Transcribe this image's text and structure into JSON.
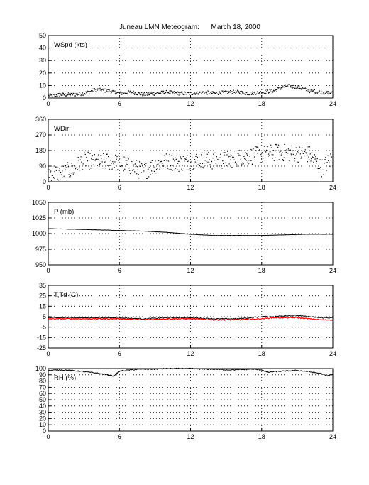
{
  "title": "Juneau LMN Meteogram:      March 18, 2000",
  "chart_data": [
    {
      "type": "scatter",
      "label": "WSpd (kts)",
      "xlim": [
        0,
        24
      ],
      "xticks": [
        0,
        6,
        12,
        18,
        24
      ],
      "ylim": [
        0,
        50
      ],
      "yticks": [
        0,
        10,
        20,
        30,
        40,
        50
      ],
      "grid": true,
      "series": [
        {
          "color": "#000000",
          "x": [
            0,
            1,
            2,
            3,
            4,
            5,
            6,
            7,
            8,
            9,
            10,
            11,
            12,
            13,
            14,
            15,
            16,
            17,
            18,
            19,
            20,
            21,
            22,
            23,
            24
          ],
          "y": [
            2,
            3,
            3,
            4,
            7,
            6,
            4,
            5,
            3,
            4,
            5,
            4,
            4,
            5,
            4,
            5,
            5,
            4,
            5,
            6,
            10,
            9,
            6,
            5,
            4
          ]
        }
      ]
    },
    {
      "type": "scatter",
      "label": "WDir",
      "xlim": [
        0,
        24
      ],
      "xticks": [
        0,
        6,
        12,
        18,
        24
      ],
      "ylim": [
        0,
        360
      ],
      "yticks": [
        0,
        90,
        180,
        270,
        360
      ],
      "grid": true,
      "series": [
        {
          "color": "#000000",
          "x": [
            0,
            1,
            2,
            3,
            4,
            5,
            6,
            7,
            8,
            9,
            10,
            11,
            12,
            13,
            14,
            15,
            16,
            17,
            18,
            19,
            20,
            21,
            22,
            23,
            24
          ],
          "y": [
            60,
            50,
            70,
            130,
            110,
            120,
            110,
            90,
            60,
            100,
            120,
            110,
            120,
            130,
            120,
            130,
            140,
            150,
            160,
            170,
            170,
            165,
            160,
            80,
            140
          ]
        }
      ]
    },
    {
      "type": "line",
      "label": "P (mb)",
      "xlim": [
        0,
        24
      ],
      "xticks": [
        0,
        6,
        12,
        18,
        24
      ],
      "ylim": [
        950,
        1050
      ],
      "yticks": [
        950,
        975,
        1000,
        1025,
        1050
      ],
      "grid": true,
      "series": [
        {
          "color": "#000000",
          "x": [
            0,
            2,
            4,
            6,
            8,
            10,
            12,
            13,
            14,
            16,
            18,
            20,
            22,
            24
          ],
          "y": [
            1008,
            1007,
            1006,
            1005,
            1004,
            1002,
            999,
            998,
            997,
            997,
            997,
            998,
            999,
            999
          ]
        }
      ]
    },
    {
      "type": "line",
      "label": "T,Td (C)",
      "xlim": [
        0,
        24
      ],
      "xticks": [
        0,
        6,
        12,
        18,
        24
      ],
      "ylim": [
        -25,
        35
      ],
      "yticks": [
        -25,
        -15,
        -5,
        5,
        15,
        25,
        35
      ],
      "grid": true,
      "series": [
        {
          "color": "#000000",
          "x": [
            0,
            2,
            4,
            6,
            8,
            10,
            12,
            14,
            16,
            18,
            19,
            20,
            21,
            22,
            23,
            24
          ],
          "y": [
            4,
            4,
            4,
            4,
            3,
            4,
            4,
            3,
            3,
            5,
            5,
            6,
            6,
            5,
            4,
            4
          ]
        },
        {
          "color": "#ff0000",
          "x": [
            0,
            2,
            4,
            6,
            8,
            10,
            12,
            14,
            16,
            18,
            19,
            20,
            21,
            22,
            23,
            24
          ],
          "y": [
            3,
            3,
            3,
            3,
            2,
            3,
            3,
            2,
            2,
            3,
            4,
            4,
            4,
            3,
            2,
            2
          ]
        }
      ]
    },
    {
      "type": "line",
      "label": "RH (%)",
      "xlim": [
        0,
        24
      ],
      "xticks": [
        0,
        6,
        12,
        18,
        24
      ],
      "ylim": [
        0,
        100
      ],
      "yticks": [
        0,
        10,
        20,
        30,
        40,
        50,
        60,
        70,
        80,
        90,
        100
      ],
      "grid": true,
      "series": [
        {
          "color": "#000000",
          "x": [
            0,
            1,
            2,
            3,
            4,
            5,
            5.5,
            6,
            7,
            8,
            9,
            10,
            11,
            12,
            13,
            14,
            15,
            16,
            17,
            18,
            18.5,
            19,
            20,
            21,
            22,
            23,
            23.5,
            24
          ],
          "y": [
            97,
            98,
            97,
            95,
            93,
            90,
            88,
            96,
            98,
            99,
            99,
            100,
            100,
            100,
            99,
            99,
            98,
            98,
            99,
            98,
            94,
            95,
            96,
            97,
            95,
            92,
            88,
            91
          ]
        }
      ]
    }
  ]
}
